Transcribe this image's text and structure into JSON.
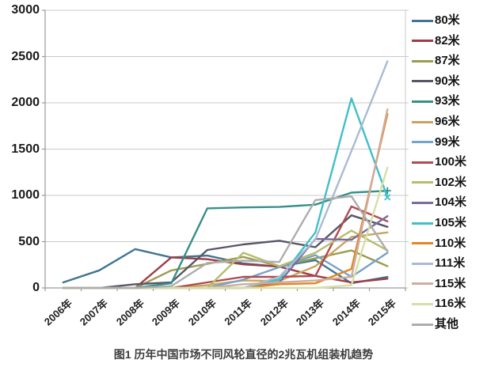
{
  "figure_caption": "图1 历年中国市场不同风轮直径的2兆瓦机组装机趋势",
  "chart_data": {
    "type": "line",
    "title": "图1 历年中国市场不同风轮直径的2兆瓦机组装机趋势",
    "categories": [
      "2006年",
      "2007年",
      "2008年",
      "2009年",
      "2010年",
      "2011年",
      "2012年",
      "2013年",
      "2014年",
      "2015年"
    ],
    "ylim": [
      0,
      3000
    ],
    "yticks": [
      0,
      500,
      1000,
      1500,
      2000,
      2500,
      3000
    ],
    "grid": "horizontal",
    "legend_position": "right",
    "axis_color": "#9a9a9a",
    "grid_color": "#c9c9c9",
    "series": [
      {
        "name": "80米",
        "color": "#417592",
        "values": [
          60,
          190,
          420,
          330,
          350,
          265,
          230,
          300,
          50,
          120
        ]
      },
      {
        "name": "82米",
        "color": "#A03B43",
        "values": [
          0,
          0,
          0,
          330,
          310,
          255,
          230,
          130,
          60,
          100
        ]
      },
      {
        "name": "87米",
        "color": "#9C9C50",
        "values": [
          0,
          0,
          0,
          190,
          260,
          335,
          235,
          320,
          405,
          235
        ]
      },
      {
        "name": "90米",
        "color": "#5A5668",
        "values": [
          0,
          0,
          40,
          60,
          410,
          470,
          510,
          440,
          785,
          660
        ]
      },
      {
        "name": "93米",
        "color": "#35908A",
        "values": [
          0,
          0,
          0,
          50,
          860,
          870,
          875,
          900,
          1030,
          1050
        ],
        "end_marker": "plus"
      },
      {
        "name": "96米",
        "color": "#C9A45E",
        "values": [
          0,
          0,
          0,
          0,
          30,
          80,
          75,
          235,
          550,
          600
        ]
      },
      {
        "name": "99米",
        "color": "#74A3CC",
        "values": [
          0,
          0,
          0,
          0,
          0,
          90,
          225,
          355,
          120,
          380
        ]
      },
      {
        "name": "100米",
        "color": "#B04A4F",
        "values": [
          0,
          0,
          0,
          0,
          60,
          120,
          120,
          130,
          880,
          720
        ]
      },
      {
        "name": "102米",
        "color": "#B6BD6B",
        "values": [
          0,
          0,
          0,
          0,
          0,
          380,
          235,
          380,
          620,
          405
        ]
      },
      {
        "name": "104米",
        "color": "#7A6C9D",
        "values": [
          0,
          0,
          0,
          0,
          0,
          0,
          60,
          530,
          520,
          775
        ]
      },
      {
        "name": "105米",
        "color": "#3FC0C7",
        "values": [
          0,
          0,
          0,
          0,
          0,
          0,
          95,
          600,
          2050,
          980
        ],
        "end_marker": "cross"
      },
      {
        "name": "110米",
        "color": "#E28722",
        "values": [
          0,
          0,
          0,
          0,
          0,
          0,
          40,
          50,
          205,
          1880
        ]
      },
      {
        "name": "111米",
        "color": "#AABBD0",
        "values": [
          0,
          0,
          0,
          0,
          0,
          0,
          120,
          525,
          1480,
          2450
        ]
      },
      {
        "name": "115米",
        "color": "#CBAE9F",
        "values": [
          0,
          0,
          0,
          0,
          0,
          40,
          60,
          80,
          120,
          1930
        ]
      },
      {
        "name": "116米",
        "color": "#D6E0A5",
        "values": [
          0,
          0,
          0,
          0,
          0,
          0,
          0,
          0,
          30,
          1300
        ]
      },
      {
        "name": "其他",
        "color": "#ADADAD",
        "values": [
          0,
          0,
          0,
          20,
          270,
          295,
          280,
          950,
          990,
          395
        ]
      }
    ]
  }
}
